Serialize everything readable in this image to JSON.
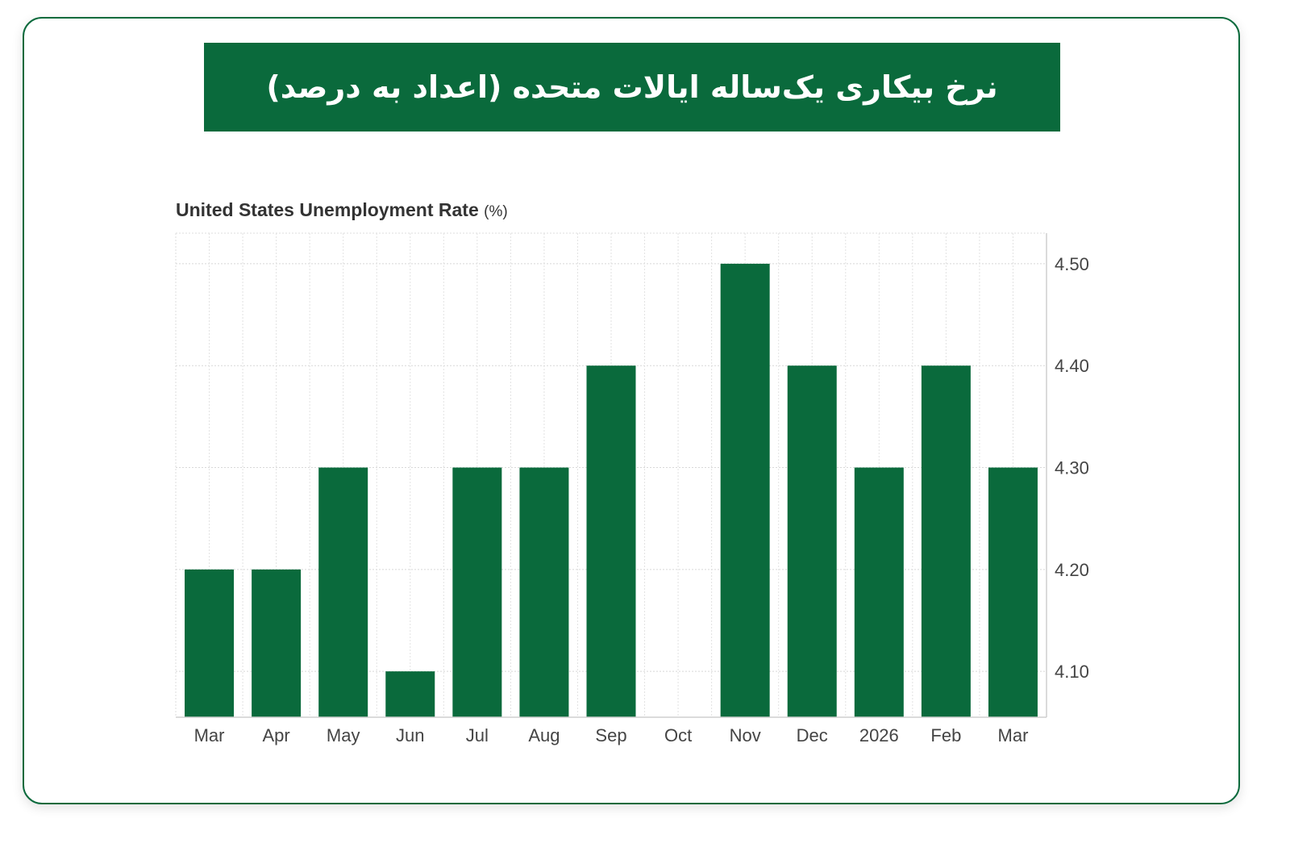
{
  "banner": {
    "title": "نرخ بیکاری یک‌ساله ایالات متحده (اعداد به درصد)"
  },
  "chart_data": {
    "type": "bar",
    "title": "United States Unemployment Rate",
    "title_unit": "(%)",
    "categories": [
      "Mar",
      "Apr",
      "May",
      "Jun",
      "Jul",
      "Aug",
      "Sep",
      "Oct",
      "Nov",
      "Dec",
      "2026",
      "Feb",
      "Mar"
    ],
    "values": [
      4.2,
      4.2,
      4.3,
      4.1,
      4.3,
      4.3,
      4.4,
      null,
      4.5,
      4.4,
      4.3,
      4.4,
      4.3
    ],
    "y_ticks": [
      "4.10",
      "4.20",
      "4.30",
      "4.40",
      "4.50"
    ],
    "ylim": [
      4.055,
      4.53
    ],
    "y_axis_side": "right",
    "grid": true,
    "bar_color": "#0a6a3c"
  }
}
